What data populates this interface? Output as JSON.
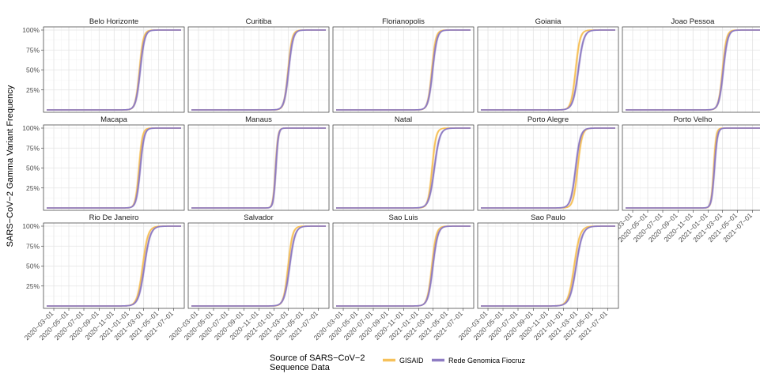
{
  "chart_data": {
    "type": "line",
    "ylabel": "SARS−CoV−2 Gamma Variant Frequency",
    "xlabel": "",
    "y_ticks": [
      "25%",
      "50%",
      "75%",
      "100%"
    ],
    "x_ticks": [
      "2020−03−01",
      "2020−05−01",
      "2020−07−01",
      "2020−09−01",
      "2020−11−01",
      "2021−01−01",
      "2021−03−01",
      "2021−05−01",
      "2021−07−01"
    ],
    "x_range": [
      "2020-02-01",
      "2021-07-31"
    ],
    "ylim": [
      0,
      1
    ],
    "legend": {
      "title_lines": [
        "Source of SARS−CoV−2",
        "Sequence Data"
      ],
      "position": "bottom"
    },
    "series": [
      {
        "name": "GISAID",
        "color": "#F6C15A"
      },
      {
        "name": "Rede Genomica Fiocruz",
        "color": "#8E7CC3"
      }
    ],
    "facets": [
      {
        "name": "Belo Horizonte",
        "midpoint": [
          "2021-02-12",
          "2021-02-15"
        ],
        "width_days": [
          8,
          9
        ]
      },
      {
        "name": "Curitiba",
        "midpoint": [
          "2021-02-28",
          "2021-03-02"
        ],
        "width_days": [
          8,
          9
        ]
      },
      {
        "name": "Florianopolis",
        "midpoint": [
          "2021-02-24",
          "2021-02-27"
        ],
        "width_days": [
          8,
          9
        ]
      },
      {
        "name": "Goiania",
        "midpoint": [
          "2021-02-20",
          "2021-03-03"
        ],
        "width_days": [
          9,
          11
        ]
      },
      {
        "name": "Joao Pessoa",
        "midpoint": [
          "2021-03-01",
          "2021-03-04"
        ],
        "width_days": [
          8,
          9
        ]
      },
      {
        "name": "Macapa",
        "midpoint": [
          "2021-02-10",
          "2021-02-15"
        ],
        "width_days": [
          7,
          8
        ]
      },
      {
        "name": "Manaus",
        "midpoint": [
          "2021-01-08",
          "2021-01-09"
        ],
        "width_days": [
          5,
          5
        ]
      },
      {
        "name": "Natal",
        "midpoint": [
          "2021-02-25",
          "2021-03-06"
        ],
        "width_days": [
          8,
          11
        ]
      },
      {
        "name": "Porto Alegre",
        "midpoint": [
          "2021-02-28",
          "2021-02-20"
        ],
        "width_days": [
          9,
          10
        ]
      },
      {
        "name": "Porto Velho",
        "midpoint": [
          "2021-01-24",
          "2021-01-27"
        ],
        "width_days": [
          5,
          6
        ]
      },
      {
        "name": "Rio De Janeiro",
        "midpoint": [
          "2021-02-25",
          "2021-03-04"
        ],
        "width_days": [
          11,
          12
        ]
      },
      {
        "name": "Salvador",
        "midpoint": [
          "2021-02-28",
          "2021-03-06"
        ],
        "width_days": [
          9,
          11
        ]
      },
      {
        "name": "Sao Luis",
        "midpoint": [
          "2021-02-24",
          "2021-02-28"
        ],
        "width_days": [
          9,
          10
        ]
      },
      {
        "name": "Sao Paulo",
        "midpoint": [
          "2021-02-14",
          "2021-02-22"
        ],
        "width_days": [
          12,
          13
        ]
      }
    ]
  }
}
